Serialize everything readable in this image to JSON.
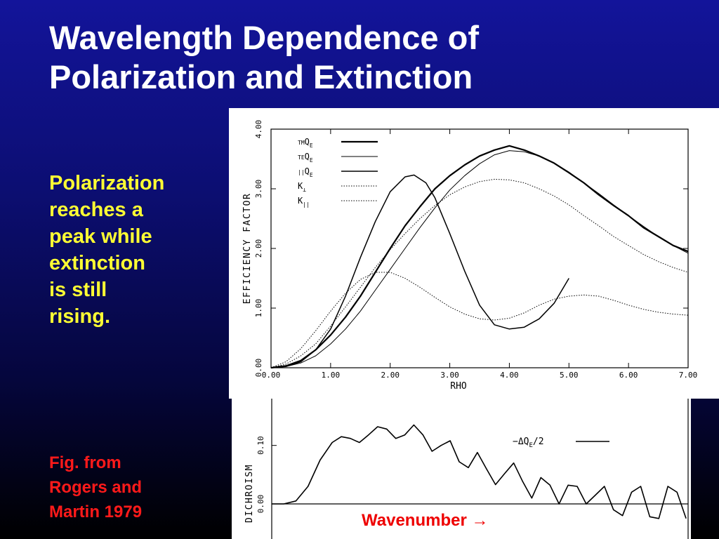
{
  "slide": {
    "title_lines": [
      "Wavelength Dependence of",
      "Polarization and Extinction"
    ],
    "callout_lines": [
      "Polarization",
      "reaches a",
      "peak while",
      "extinction",
      "is still",
      "rising."
    ],
    "credit_lines": [
      "Fig. from",
      "Rogers and",
      "Martin 1979"
    ],
    "wavenumber_label": "Wavenumber",
    "wavenumber_arrow": "→",
    "colors": {
      "title": "#ffffff",
      "callout": "#ffff33",
      "credit": "#ff1a1a",
      "wavenumber": "#ee0000"
    }
  },
  "chart_data": [
    {
      "type": "line",
      "xlabel": "RHO",
      "ylabel": "EFFICIENCY FACTOR",
      "xlim": [
        0,
        7
      ],
      "ylim": [
        0,
        4
      ],
      "x_ticks": [
        "0.00",
        "1.00",
        "2.00",
        "3.00",
        "4.00",
        "5.00",
        "6.00",
        "7.00"
      ],
      "y_ticks": [
        "0.00",
        "1.00",
        "2.00",
        "3.00",
        "4.00"
      ],
      "grid": false,
      "legend_position": "top-left",
      "series": [
        {
          "name": "TM Q_E",
          "legend_prefix": "TM",
          "legend_symbol": "Q",
          "legend_sub": "E",
          "style": "solid-thick",
          "x": [
            0,
            0.25,
            0.5,
            0.75,
            1.0,
            1.25,
            1.5,
            1.75,
            2.0,
            2.25,
            2.5,
            2.75,
            3.0,
            3.25,
            3.5,
            3.75,
            4.0,
            4.25,
            4.5,
            4.75,
            5.0,
            5.25,
            5.5,
            5.75,
            6.0,
            6.25,
            6.5,
            6.75,
            7.0
          ],
          "y": [
            0.0,
            0.03,
            0.12,
            0.3,
            0.55,
            0.85,
            1.2,
            1.6,
            2.0,
            2.38,
            2.7,
            3.0,
            3.22,
            3.4,
            3.55,
            3.65,
            3.72,
            3.65,
            3.55,
            3.43,
            3.27,
            3.1,
            2.9,
            2.72,
            2.55,
            2.35,
            2.2,
            2.05,
            1.95
          ]
        },
        {
          "name": "TE Q_E",
          "legend_prefix": "TE",
          "legend_symbol": "Q",
          "legend_sub": "E",
          "style": "solid-thin",
          "x": [
            0,
            0.25,
            0.5,
            0.75,
            1.0,
            1.25,
            1.5,
            1.75,
            2.0,
            2.25,
            2.5,
            2.75,
            3.0,
            3.25,
            3.5,
            3.75,
            4.0,
            4.25,
            4.5,
            4.75,
            5.0,
            5.25,
            5.5,
            5.75,
            6.0,
            6.25,
            6.5,
            6.75,
            7.0
          ],
          "y": [
            0.0,
            0.02,
            0.08,
            0.2,
            0.4,
            0.65,
            0.95,
            1.3,
            1.65,
            2.0,
            2.35,
            2.68,
            2.98,
            3.22,
            3.42,
            3.57,
            3.64,
            3.62,
            3.55,
            3.43,
            3.28,
            3.1,
            2.92,
            2.73,
            2.55,
            2.37,
            2.2,
            2.05,
            1.92
          ]
        },
        {
          "name": "|| Q_E",
          "legend_prefix": "||",
          "legend_symbol": "Q",
          "legend_sub": "E",
          "style": "solid",
          "x": [
            0,
            0.25,
            0.5,
            0.75,
            1.0,
            1.25,
            1.5,
            1.75,
            2.0,
            2.25,
            2.4,
            2.6,
            2.75,
            3.0,
            3.25,
            3.5,
            3.75,
            4.0,
            4.25,
            4.5,
            4.75,
            5.0
          ],
          "y": [
            0.0,
            0.02,
            0.1,
            0.3,
            0.65,
            1.2,
            1.85,
            2.45,
            2.95,
            3.2,
            3.23,
            3.1,
            2.85,
            2.25,
            1.62,
            1.05,
            0.72,
            0.65,
            0.68,
            0.82,
            1.08,
            1.5
          ]
        },
        {
          "name": "K⊥",
          "legend_prefix": "",
          "legend_symbol": "K",
          "legend_sub": "⊥",
          "style": "dotted",
          "x": [
            0,
            0.25,
            0.5,
            0.75,
            1.0,
            1.25,
            1.5,
            1.75,
            2.0,
            2.25,
            2.5,
            2.75,
            3.0,
            3.25,
            3.5,
            3.75,
            4.0,
            4.25,
            4.5,
            4.75,
            5.0,
            5.25,
            5.5,
            5.75,
            6.0,
            6.25,
            6.5,
            6.75,
            7.0
          ],
          "y": [
            0.0,
            0.06,
            0.2,
            0.4,
            0.7,
            1.02,
            1.35,
            1.68,
            1.98,
            2.25,
            2.5,
            2.72,
            2.9,
            3.03,
            3.12,
            3.16,
            3.15,
            3.1,
            3.0,
            2.88,
            2.73,
            2.55,
            2.38,
            2.2,
            2.05,
            1.9,
            1.78,
            1.68,
            1.6
          ]
        },
        {
          "name": "K||",
          "legend_prefix": "",
          "legend_symbol": "K",
          "legend_sub": "||",
          "style": "dotted",
          "x": [
            0,
            0.25,
            0.5,
            0.75,
            1.0,
            1.25,
            1.5,
            1.75,
            2.0,
            2.25,
            2.5,
            2.75,
            3.0,
            3.25,
            3.5,
            3.75,
            4.0,
            4.25,
            4.5,
            4.75,
            5.0,
            5.25,
            5.5,
            5.75,
            6.0,
            6.25,
            6.5,
            6.75,
            7.0
          ],
          "y": [
            0.0,
            0.1,
            0.32,
            0.62,
            0.95,
            1.25,
            1.48,
            1.6,
            1.6,
            1.5,
            1.35,
            1.18,
            1.02,
            0.9,
            0.82,
            0.8,
            0.83,
            0.92,
            1.05,
            1.15,
            1.2,
            1.22,
            1.2,
            1.13,
            1.05,
            0.98,
            0.93,
            0.9,
            0.88
          ]
        }
      ]
    },
    {
      "type": "line",
      "xlabel": "",
      "ylabel": "DICHROISM",
      "xlim": [
        0,
        7
      ],
      "ylim": [
        -0.06,
        0.18
      ],
      "y_ticks": [
        "0.00",
        "0.10"
      ],
      "grid": false,
      "legend_position": "top-right",
      "series": [
        {
          "name": "−ΔQ_E/2",
          "legend_text": "−ΔQ",
          "legend_sub": "E",
          "legend_suffix": "/2",
          "style": "solid",
          "x": [
            0,
            0.2,
            0.4,
            0.6,
            0.8,
            1.0,
            1.15,
            1.3,
            1.45,
            1.6,
            1.75,
            1.9,
            2.05,
            2.2,
            2.35,
            2.5,
            2.65,
            2.8,
            2.95,
            3.1,
            3.25,
            3.4,
            3.55,
            3.7,
            3.85,
            4.0,
            4.15,
            4.3,
            4.45,
            4.6,
            4.75,
            4.9,
            5.05,
            5.2,
            5.35,
            5.5,
            5.65,
            5.8,
            5.95,
            6.1,
            6.25,
            6.4,
            6.55,
            6.7,
            6.85,
            6.95
          ],
          "y": [
            0.0,
            0.0,
            0.005,
            0.03,
            0.075,
            0.105,
            0.115,
            0.112,
            0.105,
            0.118,
            0.132,
            0.128,
            0.112,
            0.118,
            0.135,
            0.118,
            0.09,
            0.1,
            0.108,
            0.072,
            0.062,
            0.088,
            0.06,
            0.033,
            0.052,
            0.07,
            0.038,
            0.01,
            0.045,
            0.032,
            0.0,
            0.032,
            0.03,
            0.0,
            0.015,
            0.03,
            -0.01,
            -0.02,
            0.02,
            0.03,
            -0.022,
            -0.025,
            0.03,
            0.02,
            -0.025,
            0.03
          ]
        }
      ]
    }
  ]
}
